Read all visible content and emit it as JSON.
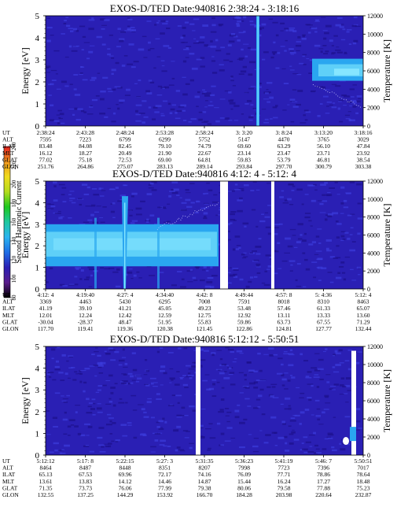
{
  "colors": {
    "background_field": "#2a1fb4",
    "noise_dark": "#1c0f8c",
    "noise_light": "#3c3cdc",
    "band_cyan": "#2aa6f0",
    "band_light": "#5fd0f8",
    "band_core": "#86e6ff",
    "gap": "#ffffff",
    "axis": "#000000"
  },
  "colorbar": {
    "label": "Second Harmonic Current",
    "range": [
      80,
      240
    ],
    "ticks": [
      "80",
      "100",
      "120",
      "140",
      "160",
      "180",
      "200",
      "220",
      "240"
    ],
    "stops": [
      "#000000",
      "#5a1c8c",
      "#2a1fb4",
      "#1e6ee6",
      "#2ab4f0",
      "#1ec8a0",
      "#1ec81e",
      "#b4dc1e",
      "#f0dc1e",
      "#f0961e",
      "#e61e1e"
    ]
  },
  "chart_data": [
    {
      "type": "heatmap",
      "title": "EXOS-D/TED   Date:940816  2:38:24 - 3:18:16",
      "ylabel": "Energy [eV]",
      "y2label": "Temperature [K]",
      "ylim": [
        0,
        5
      ],
      "y2lim": [
        0,
        12000
      ],
      "yticks": [
        "0",
        "1",
        "2",
        "3",
        "4",
        "5"
      ],
      "y2ticks": [
        "0",
        "2000",
        "4000",
        "6000",
        "8000",
        "10000",
        "12000"
      ],
      "row_labels": [
        "UT",
        "ALT",
        "ILAT",
        "MLT",
        "GLAT",
        "GLON"
      ],
      "columns": [
        [
          "2:38:24",
          "7595",
          "83.48",
          "16.12",
          "77.02",
          "251.76"
        ],
        [
          "2:43:28",
          "7223",
          "84.08",
          "18.27",
          "75.18",
          "264.86"
        ],
        [
          "2:48:24",
          "6799",
          "82.45",
          "20.49",
          "72.53",
          "275.07"
        ],
        [
          "2:53:28",
          "6299",
          "79.10",
          "21.90",
          "69.00",
          "283.13"
        ],
        [
          "2:58:24",
          "5752",
          "74.79",
          "22.67",
          "64.81",
          "289.14"
        ],
        [
          "3: 3:20",
          "5147",
          "69.60",
          "23.14",
          "59.83",
          "293.84"
        ],
        [
          "3: 8:24",
          "4470",
          "63.29",
          "23.47",
          "53.79",
          "297.70"
        ],
        [
          "3:13:20",
          "3765",
          "56.10",
          "23.71",
          "46.81",
          "300.79"
        ],
        [
          "3:18:16",
          "3029",
          "47.84",
          "23.92",
          "38.54",
          "303.38"
        ]
      ]
    },
    {
      "type": "heatmap",
      "title": "EXOS-D/TED   Date:940816  4:12: 4 - 5:12: 4",
      "ylabel": "Energy [eV]",
      "y2label": "Temperature [K]",
      "ylim": [
        0,
        5
      ],
      "y2lim": [
        0,
        12000
      ],
      "yticks": [
        "0",
        "1",
        "2",
        "3",
        "4",
        "5"
      ],
      "y2ticks": [
        "0",
        "2000",
        "4000",
        "6000",
        "8000",
        "10000",
        "12000"
      ],
      "row_labels": [
        "UT",
        "ALT",
        "ILAT",
        "MLT",
        "GLAT",
        "GLON"
      ],
      "columns": [
        [
          "4:12: 4",
          "3369",
          "41.19",
          "12.01",
          "-30.04",
          "117.70"
        ],
        [
          "4:19:40",
          "4463",
          "39.10",
          "12.24",
          "-28.37",
          "119.41"
        ],
        [
          "4:27: 4",
          "5430",
          "41.21",
          "12.42",
          "48.47",
          "119.36"
        ],
        [
          "4:34:40",
          "6295",
          "45.05",
          "12.59",
          "51.95",
          "120.38"
        ],
        [
          "4:42: 8",
          "7008",
          "49.23",
          "12.75",
          "55.83",
          "121.45"
        ],
        [
          "4:49:44",
          "7591",
          "53.48",
          "12.92",
          "59.86",
          "122.86"
        ],
        [
          "4:57: 8",
          "8018",
          "57.46",
          "13.11",
          "63.73",
          "124.81"
        ],
        [
          "5: 4:36",
          "8310",
          "61.33",
          "13.33",
          "67.55",
          "127.77"
        ],
        [
          "5:12: 4",
          "8463",
          "65.07",
          "13.60",
          "71.29",
          "132.44"
        ]
      ]
    },
    {
      "type": "heatmap",
      "title": "EXOS-D/TED   Date:940816  5:12:12 - 5:50:51",
      "ylabel": "Energy [eV]",
      "y2label": "Temperature [K]",
      "ylim": [
        0,
        5
      ],
      "y2lim": [
        0,
        12000
      ],
      "yticks": [
        "0",
        "1",
        "2",
        "3",
        "4",
        "5"
      ],
      "y2ticks": [
        "0",
        "2000",
        "4000",
        "6000",
        "8000",
        "10000",
        "12000"
      ],
      "row_labels": [
        "UT",
        "ALT",
        "ILAT",
        "MLT",
        "GLAT",
        "GLON"
      ],
      "columns": [
        [
          "5:12:12",
          "8464",
          "65.13",
          "13.61",
          "71.35",
          "132.55"
        ],
        [
          "5:17: 8",
          "8487",
          "67.53",
          "13.83",
          "73.73",
          "137.25"
        ],
        [
          "5:22:15",
          "8448",
          "69.96",
          "14.12",
          "76.06",
          "144.29"
        ],
        [
          "5:27: 3",
          "8351",
          "72.17",
          "14.46",
          "77.99",
          "153.92"
        ],
        [
          "5:31:35",
          "8207",
          "74.16",
          "14.87",
          "79.38",
          "166.70"
        ],
        [
          "5:36:23",
          "7998",
          "76.09",
          "15.44",
          "80.06",
          "184.28"
        ],
        [
          "5:41:19",
          "7723",
          "77.71",
          "16.24",
          "79.58",
          "203.98"
        ],
        [
          "5:46: 7",
          "7396",
          "78.86",
          "17.27",
          "77.88",
          "220.64"
        ],
        [
          "5:50:51",
          "7017",
          "78.64",
          "18.48",
          "75.23",
          "232.87"
        ]
      ]
    }
  ]
}
